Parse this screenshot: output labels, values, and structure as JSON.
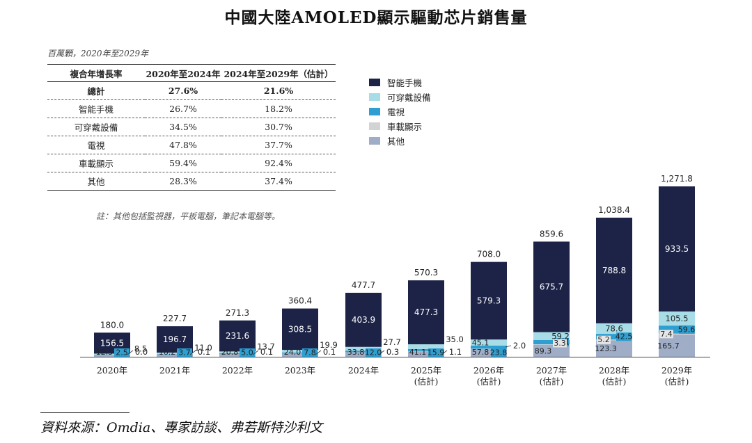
{
  "title": "中國大陸AMOLED顯示驅動芯片銷售量",
  "unit_label": "百萬顆，2020年至2029年",
  "cagr_table": {
    "headers": [
      "複合年增長率",
      "2020年至2024年",
      "2024年至2029年（估計）"
    ],
    "rows": [
      {
        "label": "總計",
        "v1": "27.6%",
        "v2": "21.6%"
      },
      {
        "label": "智能手機",
        "v1": "26.7%",
        "v2": "18.2%"
      },
      {
        "label": "可穿戴設備",
        "v1": "34.5%",
        "v2": "30.7%"
      },
      {
        "label": "電視",
        "v1": "47.8%",
        "v2": "37.7%"
      },
      {
        "label": "車載顯示",
        "v1": "59.4%",
        "v2": "92.4%"
      },
      {
        "label": "其他",
        "v1": "28.3%",
        "v2": "37.4%"
      }
    ]
  },
  "note": "註：其他包括監視器，平板電腦，筆記本電腦等。",
  "legend": [
    {
      "name": "智能手機",
      "color": "#1c2347"
    },
    {
      "name": "可穿戴設備",
      "color": "#a8dce6"
    },
    {
      "name": "電視",
      "color": "#2f9fd1"
    },
    {
      "name": "車載顯示",
      "color": "#d3d3d3"
    },
    {
      "name": "其他",
      "color": "#9fadc6"
    }
  ],
  "chart_data": {
    "type": "bar",
    "stacked": true,
    "title": "中國大陸AMOLED顯示驅動芯片銷售量",
    "ylabel": "百萬顆",
    "ylim": [
      0,
      1300
    ],
    "categories": [
      "2020年",
      "2021年",
      "2022年",
      "2023年",
      "2024年",
      "2025年",
      "2026年",
      "2027年",
      "2028年",
      "2029年"
    ],
    "category_sublabels": [
      "",
      "",
      "",
      "",
      "",
      "(估計)",
      "(估計)",
      "(估計)",
      "(估計)",
      "(估計)"
    ],
    "totals": [
      180.0,
      227.7,
      271.3,
      360.4,
      477.7,
      570.3,
      708.0,
      859.6,
      1038.4,
      1271.8
    ],
    "total_labels": [
      "180.0",
      "227.7",
      "271.3",
      "360.4",
      "477.7",
      "570.3",
      "708.0",
      "859.6",
      "1,038.4",
      "1,271.8"
    ],
    "series": [
      {
        "name": "其他",
        "color": "#9fadc6",
        "values": [
          12.5,
          16.2,
          20.8,
          24.0,
          33.8,
          41.1,
          57.8,
          89.3,
          123.3,
          165.7
        ],
        "labels": [
          "12.5",
          "16.2",
          "20.8",
          "24.0",
          "33.8",
          "41.1",
          "57.8",
          "89.3",
          "123.3",
          "165.7"
        ]
      },
      {
        "name": "車載顯示",
        "color": "#d3d3d3",
        "values": [
          0.0,
          0.1,
          0.1,
          0.1,
          0.3,
          1.1,
          2.0,
          3.3,
          5.2,
          7.4
        ],
        "labels": [
          "0.0",
          "0.1",
          "0.1",
          "0.1",
          "0.3",
          "1.1",
          "2.0",
          "3.3",
          "5.2",
          "7.4"
        ]
      },
      {
        "name": "電視",
        "color": "#2f9fd1",
        "values": [
          2.5,
          3.7,
          5.0,
          7.8,
          12.0,
          15.9,
          23.8,
          32.1,
          42.5,
          59.6
        ],
        "labels": [
          "2.5",
          "3.7",
          "5.0",
          "7.8",
          "12.0",
          "15.9",
          "23.8",
          "32.1",
          "42.5",
          "59.6"
        ]
      },
      {
        "name": "可穿戴設備",
        "color": "#a8dce6",
        "values": [
          8.5,
          11.0,
          13.7,
          19.9,
          27.7,
          35.0,
          45.1,
          59.2,
          78.6,
          105.5
        ],
        "labels": [
          "8.5",
          "11.0",
          "13.7",
          "19.9",
          "27.7",
          "35.0",
          "45.1",
          "59.2",
          "78.6",
          "105.5"
        ]
      },
      {
        "name": "智能手機",
        "color": "#1c2347",
        "values": [
          156.5,
          196.7,
          231.6,
          308.5,
          403.9,
          477.3,
          579.3,
          675.7,
          788.8,
          933.5
        ],
        "labels": [
          "156.5",
          "196.7",
          "231.6",
          "308.5",
          "403.9",
          "477.3",
          "579.3",
          "675.7",
          "788.8",
          "933.5"
        ]
      }
    ]
  },
  "source": "資料來源：Omdia、專家訪談、弗若斯特沙利文"
}
